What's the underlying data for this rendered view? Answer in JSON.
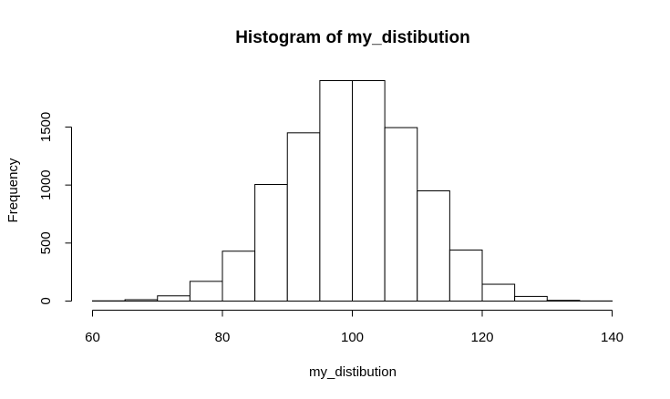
{
  "chart_data": {
    "type": "bar",
    "title": "Histogram of my_distibution",
    "xlabel": "my_distibution",
    "ylabel": "Frequency",
    "xlim": [
      60,
      140
    ],
    "ylim": [
      0,
      1900
    ],
    "x_ticks": [
      60,
      80,
      100,
      120,
      140
    ],
    "y_ticks": [
      0,
      500,
      1000,
      1500
    ],
    "bins": [
      {
        "from": 60,
        "to": 65,
        "value": 2
      },
      {
        "from": 65,
        "to": 70,
        "value": 12
      },
      {
        "from": 70,
        "to": 75,
        "value": 45
      },
      {
        "from": 75,
        "to": 80,
        "value": 170
      },
      {
        "from": 80,
        "to": 85,
        "value": 430
      },
      {
        "from": 85,
        "to": 90,
        "value": 1005
      },
      {
        "from": 90,
        "to": 95,
        "value": 1450
      },
      {
        "from": 95,
        "to": 100,
        "value": 1900
      },
      {
        "from": 100,
        "to": 105,
        "value": 1900
      },
      {
        "from": 105,
        "to": 110,
        "value": 1495
      },
      {
        "from": 110,
        "to": 115,
        "value": 950
      },
      {
        "from": 115,
        "to": 120,
        "value": 440
      },
      {
        "from": 120,
        "to": 125,
        "value": 145
      },
      {
        "from": 125,
        "to": 130,
        "value": 40
      },
      {
        "from": 130,
        "to": 135,
        "value": 6
      },
      {
        "from": 135,
        "to": 140,
        "value": 1
      }
    ],
    "grid": false,
    "legend": "none"
  }
}
